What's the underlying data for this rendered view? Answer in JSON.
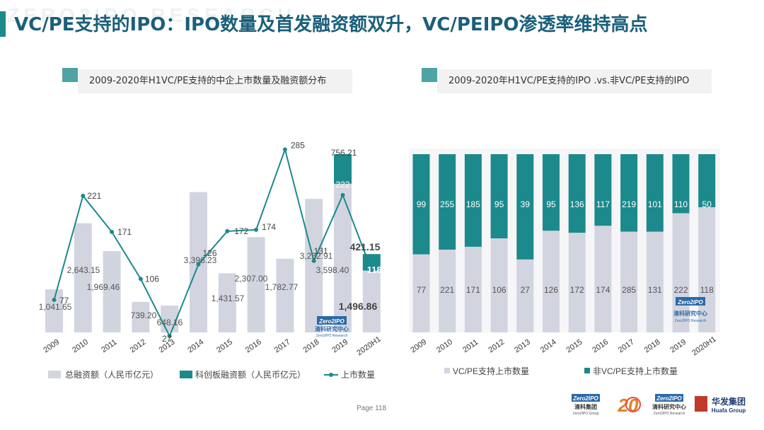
{
  "slide": {
    "title": "VC/PE支持的IPO：IPO数量及首发融资额双升，VC/PEIPO渗透率维持高点",
    "watermark": "ZERO2IPO RESEARCH",
    "page_label": "Page",
    "page_number": "118"
  },
  "colors": {
    "teal": "#1c8a8c",
    "gray_bar": "#d2d5e0",
    "title": "#1a5f7a"
  },
  "chart_data": [
    {
      "type": "bar+line",
      "title": "2009-2020年H1VC/PE支持的中企上市数量及融资额分布",
      "categories": [
        "2009",
        "2010",
        "2011",
        "2012",
        "2013",
        "2014",
        "2015",
        "2016",
        "2017",
        "2018",
        "2019",
        "2020H1"
      ],
      "series": [
        {
          "name": "总融资额（人民币亿元）",
          "kind": "bar",
          "values": [
            1041.65,
            2643.15,
            1969.46,
            739.2,
            648.16,
            3396.23,
            1431.57,
            2307.0,
            1782.77,
            3232.91,
            3598.4,
            1496.86
          ],
          "labels": [
            "1,041.65",
            "2,643.15",
            "1,969.46",
            "739.20",
            "648.16",
            "3,396.23",
            "1,431.57",
            "2,307.00",
            "1,782.77",
            "3,232.91",
            "3,598.40",
            "1,496.86"
          ]
        },
        {
          "name": "科创板融资额（人民币亿元）",
          "kind": "bar-stacked",
          "values": [
            null,
            null,
            null,
            null,
            null,
            null,
            null,
            null,
            null,
            null,
            756.21,
            421.15
          ],
          "labels": [
            "",
            "",
            "",
            "",
            "",
            "",
            "",
            "",
            "",
            "",
            "756.21",
            "421.15"
          ]
        },
        {
          "name": "上市数量",
          "kind": "line",
          "values": [
            77,
            221,
            171,
            106,
            27,
            126,
            172,
            174,
            285,
            131,
            222,
            118
          ],
          "labels": [
            "77",
            "221",
            "171",
            "106",
            "27",
            "126",
            "172",
            "174",
            "285",
            "131",
            "222",
            "118"
          ]
        }
      ],
      "legend": [
        "总融资额（人民币亿元）",
        "科创板融资额（人民币亿元）",
        "上市数量"
      ],
      "logo": {
        "brand": "Zero2IPO",
        "name": "清科研究中心",
        "sub": "Zero2IPO Research"
      }
    },
    {
      "type": "bar-100%-stacked",
      "title": "2009-2020年H1VC/PE支持的IPO .vs.非VC/PE支持的IPO",
      "categories": [
        "2009",
        "2010",
        "2011",
        "2012",
        "2013",
        "2014",
        "2015",
        "2016",
        "2017",
        "2018",
        "2019",
        "2020H1"
      ],
      "series": [
        {
          "name": "VC/PE支持上市数量",
          "values": [
            77,
            221,
            171,
            106,
            27,
            126,
            172,
            174,
            285,
            131,
            222,
            118
          ]
        },
        {
          "name": "非VC/PE支持上市数量",
          "values": [
            99,
            255,
            185,
            95,
            39,
            95,
            136,
            117,
            219,
            101,
            110,
            50
          ]
        }
      ],
      "legend": [
        "VC/PE支持上市数量",
        "非VC/PE支持上市数量"
      ],
      "logo": {
        "brand": "Zero2IPO",
        "name": "清科研究中心",
        "sub": "Zero2IPO Research"
      }
    }
  ],
  "footer_logos": [
    {
      "brand": "Zero2IPO",
      "name": "清科集团",
      "sub": "Zero2IPO Group"
    },
    {
      "brand": "20",
      "name": "",
      "sub": ""
    },
    {
      "brand": "Zero2IPO",
      "name": "清科研究中心",
      "sub": "Zero2IPO Research"
    },
    {
      "brand": "华发集团",
      "name": "Huafa Group",
      "sub": ""
    }
  ]
}
